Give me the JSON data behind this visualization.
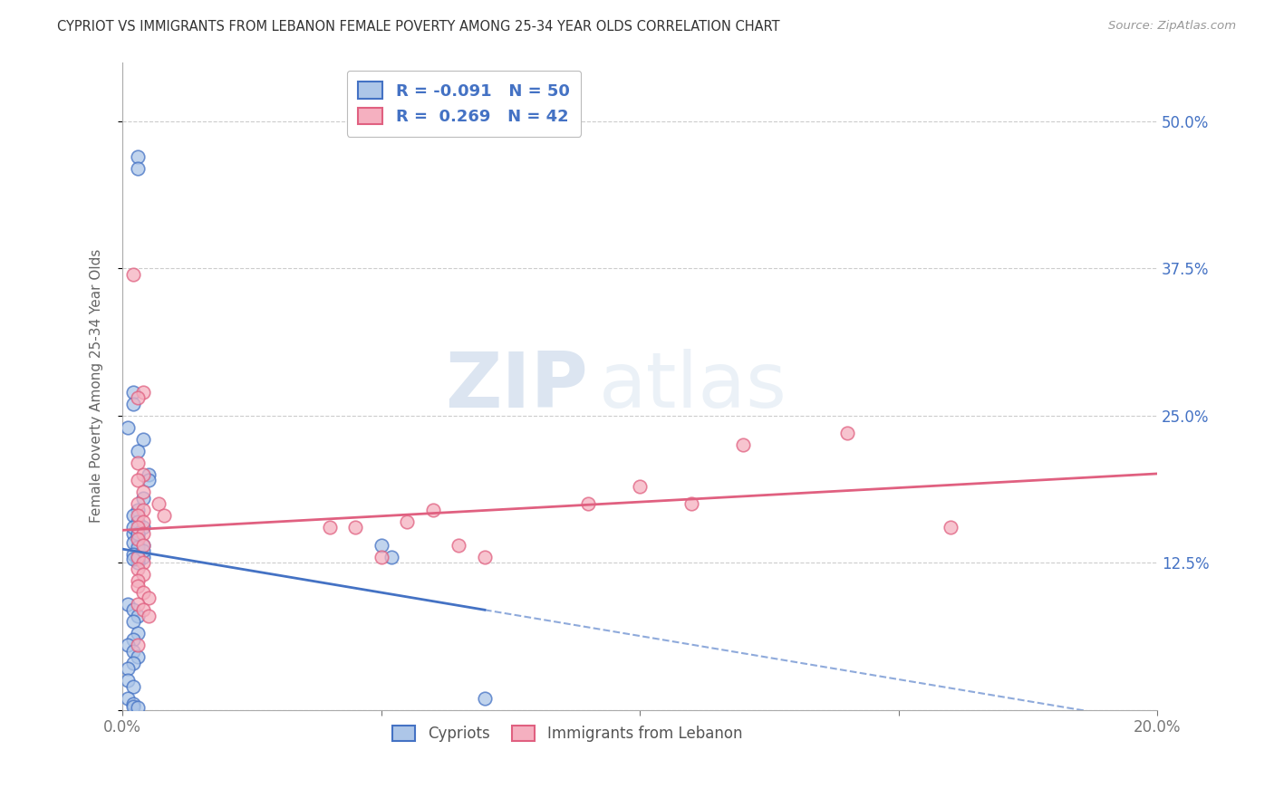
{
  "title": "CYPRIOT VS IMMIGRANTS FROM LEBANON FEMALE POVERTY AMONG 25-34 YEAR OLDS CORRELATION CHART",
  "source": "Source: ZipAtlas.com",
  "ylabel": "Female Poverty Among 25-34 Year Olds",
  "xlim": [
    0.0,
    0.2
  ],
  "ylim": [
    0.0,
    0.55
  ],
  "yticks": [
    0.0,
    0.125,
    0.25,
    0.375,
    0.5
  ],
  "ytick_labels_right": [
    "",
    "12.5%",
    "25.0%",
    "37.5%",
    "50.0%"
  ],
  "xticks": [
    0.0,
    0.05,
    0.1,
    0.15,
    0.2
  ],
  "xtick_labels": [
    "0.0%",
    "",
    "",
    "",
    "20.0%"
  ],
  "legend_labels": [
    "Cypriots",
    "Immigrants from Lebanon"
  ],
  "cypriot_R": "-0.091",
  "cypriot_N": "50",
  "lebanon_R": "0.269",
  "lebanon_N": "42",
  "color_cypriot": "#adc6e8",
  "color_lebanon": "#f5b0c0",
  "color_cypriot_line": "#4472c4",
  "color_lebanon_line": "#e06080",
  "background_color": "#ffffff",
  "grid_color": "#cccccc",
  "watermark_zip": "ZIP",
  "watermark_atlas": "atlas",
  "cypriot_x": [
    0.003,
    0.003,
    0.002,
    0.002,
    0.001,
    0.004,
    0.003,
    0.005,
    0.005,
    0.004,
    0.003,
    0.002,
    0.003,
    0.004,
    0.002,
    0.003,
    0.004,
    0.003,
    0.004,
    0.003,
    0.002,
    0.003,
    0.002,
    0.003,
    0.004,
    0.002,
    0.003,
    0.003,
    0.002,
    0.003,
    0.001,
    0.002,
    0.003,
    0.002,
    0.003,
    0.002,
    0.001,
    0.002,
    0.003,
    0.002,
    0.001,
    0.001,
    0.002,
    0.001,
    0.002,
    0.05,
    0.052,
    0.07,
    0.002,
    0.003
  ],
  "cypriot_y": [
    0.47,
    0.46,
    0.27,
    0.26,
    0.24,
    0.23,
    0.22,
    0.2,
    0.195,
    0.18,
    0.17,
    0.165,
    0.16,
    0.155,
    0.15,
    0.145,
    0.14,
    0.135,
    0.13,
    0.125,
    0.155,
    0.148,
    0.142,
    0.138,
    0.135,
    0.132,
    0.128,
    0.13,
    0.128,
    0.15,
    0.09,
    0.085,
    0.08,
    0.075,
    0.065,
    0.06,
    0.055,
    0.05,
    0.045,
    0.04,
    0.035,
    0.025,
    0.02,
    0.01,
    0.005,
    0.14,
    0.13,
    0.01,
    0.003,
    0.002
  ],
  "lebanon_x": [
    0.002,
    0.004,
    0.003,
    0.003,
    0.004,
    0.003,
    0.004,
    0.003,
    0.004,
    0.003,
    0.004,
    0.003,
    0.004,
    0.003,
    0.004,
    0.003,
    0.004,
    0.003,
    0.004,
    0.003,
    0.007,
    0.008,
    0.045,
    0.055,
    0.065,
    0.07,
    0.09,
    0.1,
    0.11,
    0.12,
    0.14,
    0.16,
    0.04,
    0.05,
    0.06,
    0.003,
    0.004,
    0.005,
    0.003,
    0.004,
    0.005,
    0.003
  ],
  "lebanon_y": [
    0.37,
    0.27,
    0.265,
    0.21,
    0.2,
    0.195,
    0.185,
    0.175,
    0.17,
    0.165,
    0.16,
    0.155,
    0.15,
    0.145,
    0.14,
    0.13,
    0.125,
    0.12,
    0.115,
    0.11,
    0.175,
    0.165,
    0.155,
    0.16,
    0.14,
    0.13,
    0.175,
    0.19,
    0.175,
    0.225,
    0.235,
    0.155,
    0.155,
    0.13,
    0.17,
    0.105,
    0.1,
    0.095,
    0.09,
    0.085,
    0.08,
    0.055
  ]
}
